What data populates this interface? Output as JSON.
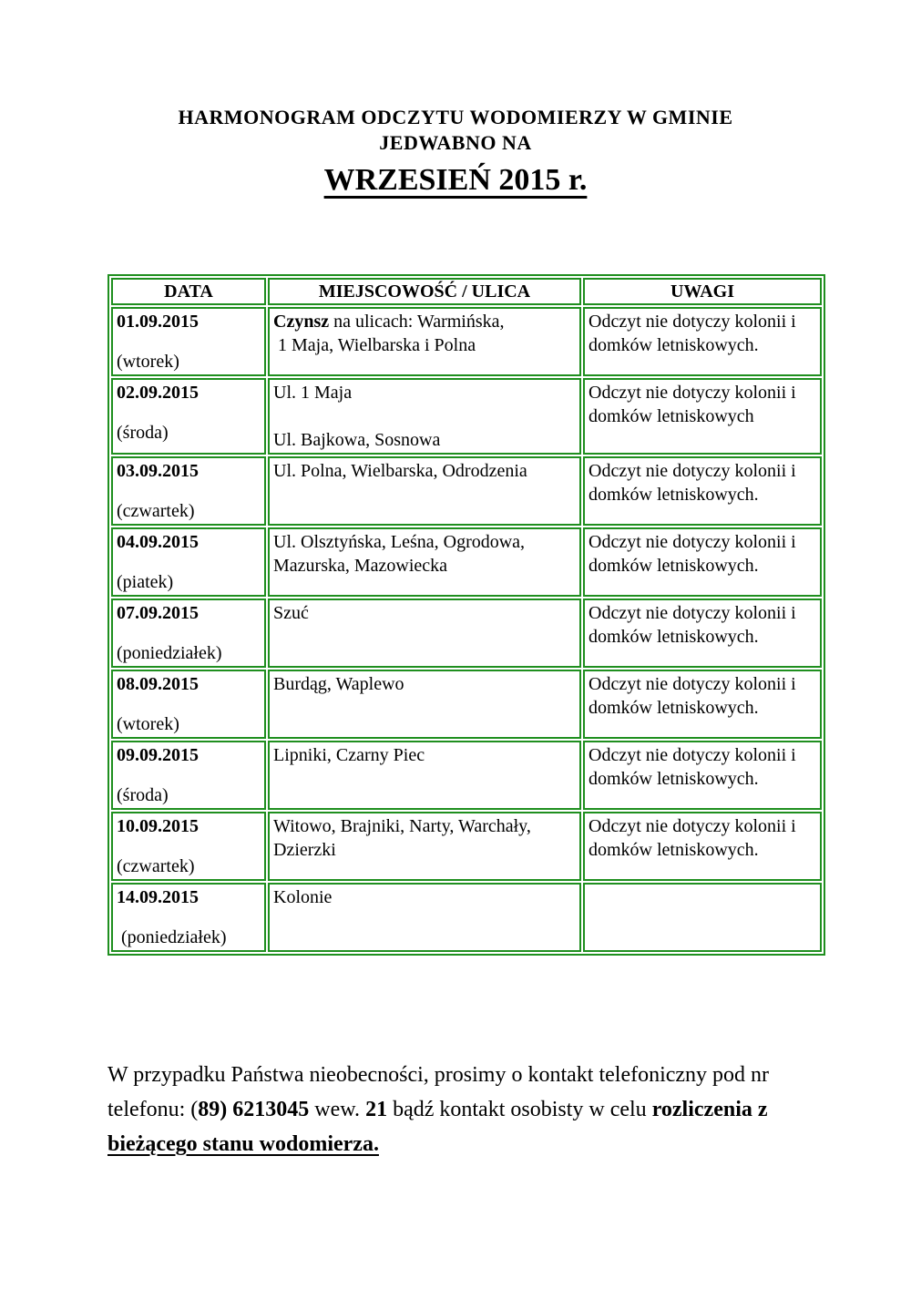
{
  "title": {
    "line1": "HARMONOGRAM ODCZYTU WODOMIERZY W GMINIE",
    "line2": "JEDWABNO NA",
    "line3": "WRZESIEŃ 2015 r."
  },
  "table": {
    "border_color": "#1f8f1f",
    "headers": [
      "DATA",
      "MIEJSCOWOŚĆ / ULICA",
      "UWAGI"
    ],
    "rows": [
      {
        "date": "01.09.2015",
        "weekday": "(wtorek)",
        "place_bold": "Czynsz",
        "place_lines": [
          " na ulicach: Warmińska,",
          " 1 Maja, Wielbarska i Polna"
        ],
        "uwagi": "Odczyt nie dotyczy kolonii i domków letniskowych."
      },
      {
        "date": "02.09.2015",
        "weekday": "(środa)",
        "place_bold": "",
        "place_lines": [
          "Ul. 1 Maja",
          "",
          "Ul. Bajkowa, Sosnowa"
        ],
        "uwagi": "Odczyt nie dotyczy kolonii i domków letniskowych"
      },
      {
        "date": "03.09.2015",
        "weekday": "(czwartek)",
        "place_bold": "",
        "place_lines": [
          "Ul. Polna, Wielbarska, Odrodzenia"
        ],
        "uwagi": "Odczyt nie dotyczy kolonii i domków letniskowych."
      },
      {
        "date": "04.09.2015",
        "weekday": "(piatek)",
        "place_bold": "",
        "place_lines": [
          "Ul. Olsztyńska, Leśna, Ogrodowa,",
          "Mazurska, Mazowiecka"
        ],
        "uwagi": "Odczyt nie dotyczy kolonii i domków letniskowych."
      },
      {
        "date": "07.09.2015",
        "weekday": "(poniedziałek)",
        "place_bold": "",
        "place_lines": [
          "Szuć"
        ],
        "uwagi": "Odczyt nie dotyczy kolonii i domków letniskowych."
      },
      {
        "date": "08.09.2015",
        "weekday": "(wtorek)",
        "place_bold": "",
        "place_lines": [
          "Burdąg, Waplewo"
        ],
        "uwagi": "Odczyt nie dotyczy kolonii i domków letniskowych."
      },
      {
        "date": "09.09.2015",
        "weekday": "(środa)",
        "place_bold": "",
        "place_lines": [
          "Lipniki, Czarny Piec"
        ],
        "uwagi": "Odczyt nie dotyczy kolonii i domków letniskowych."
      },
      {
        "date": "10.09.2015",
        "weekday": "(czwartek)",
        "place_bold": "",
        "place_lines": [
          "Witowo, Brajniki, Narty, Warchały,",
          "Dzierzki"
        ],
        "uwagi": "Odczyt nie dotyczy kolonii i domków letniskowych."
      },
      {
        "date": "14.09.2015",
        "weekday": " (poniedziałek)",
        "place_bold": "",
        "place_lines": [
          "Kolonie"
        ],
        "uwagi": ""
      }
    ]
  },
  "footer": {
    "segments": [
      {
        "text": "W przypadku Państwa nieobecności, prosimy o kontakt telefoniczny pod nr telefonu: (",
        "bold": false,
        "underline": false
      },
      {
        "text": "89) 6213045",
        "bold": true,
        "underline": false
      },
      {
        "text": "  wew. ",
        "bold": false,
        "underline": false
      },
      {
        "text": "21",
        "bold": true,
        "underline": false
      },
      {
        "text": " bądź kontakt osobisty w celu ",
        "bold": false,
        "underline": false
      },
      {
        "text": "rozliczenia z ",
        "bold": true,
        "underline": false
      },
      {
        "text": "bieżącego stanu wodomierza.",
        "bold": true,
        "underline": true
      }
    ]
  }
}
